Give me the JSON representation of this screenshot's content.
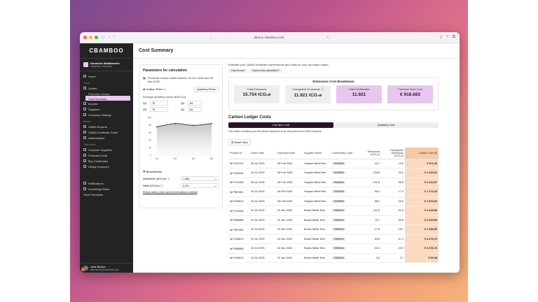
{
  "browser": {
    "url": "demo1.cbamboo.com"
  },
  "app": {
    "brand": "CBAMBOO",
    "org_name": "Deutsche Metallwerke",
    "org_location": "Hamburg, Germany",
    "page_title": "Cost Summary"
  },
  "sidebar": {
    "home": "Home",
    "section_track": "Track",
    "orders": "Orders",
    "purchase_orders": "Purchase Orders",
    "cost_summary": "Cost Summary",
    "imports": "Imports",
    "suppliers": "Suppliers",
    "company_settings": "Company Settings",
    "section_report": "Report",
    "cbam_reports": "CBAM Reports",
    "cbam_certificates_guide": "CBAM Certificate Guide",
    "authorisation": "Authorisation",
    "section_take_action": "Take Action",
    "compare_suppliers": "Compare Suppliers",
    "forecast_costs": "Forecast Costs",
    "buy_certificates": "Buy Certificates",
    "hedge_exposure": "Hedge Exposure",
    "notifications": "Notifications",
    "knowledge_base": "Knowledge Base",
    "send_feedback": "Send Feedback",
    "user_name": "Julia Becker",
    "user_email": "julia.becker@cbamboo.com"
  },
  "params": {
    "title": "Parameters for calculation",
    "note": "Purchase orders made between 30 Jun 2025 and 30 Nov 2025",
    "carbon_price_label": "Carbon Price",
    "carbon_price_mode": "Quarterly Prices",
    "avg_label": "Average quarterly prices (€/tCO₂e)",
    "q1_label": "Q1",
    "q1_value": "75",
    "q2_label": "Q2",
    "q2_value": "84",
    "q3_label": "Q3",
    "q3_value": "79",
    "q4_label": "Q4",
    "q4_value": "84",
    "benchmarks_label": "Benchmarks",
    "aluminium_label": "Aluminium (tCO₂e)",
    "aluminium_value": "1.464",
    "steel_label": "Steel (tCO₂e)",
    "steel_value": "0.2%",
    "reset_link": "Reset carbon price and benchmarks to default"
  },
  "chart_data": {
    "type": "area",
    "categories": [
      "Q1",
      "Q2",
      "Q3",
      "Q4"
    ],
    "values": [
      75,
      84,
      79,
      84
    ],
    "yticks": [
      "100",
      "80",
      "60",
      "40",
      "20",
      "0"
    ],
    "xticks": [
      "Q1",
      "Q2",
      "Q3",
      "Q4"
    ]
  },
  "summary": {
    "intro": "Estimate your CBAM certificate requirements and costs for your purchase orders.",
    "btn_how_to_use": "How to use",
    "btn_how_calculated": "How is this calculated?",
    "breakdown_title": "Emissions Cost Breakdown",
    "cards": [
      {
        "label": "Total Emissions",
        "value": "15.754 tCO₂e"
      },
      {
        "label": "Chargeable Emissions",
        "value": "11.921 tCO₂e"
      },
      {
        "label": "Total Certificates",
        "value": "11.921"
      },
      {
        "label": "Forecast Total Cost",
        "value": "€ 918.683"
      }
    ]
  },
  "ledger": {
    "title": "Carbon Ledger Costs",
    "tab_line": "Line Item Cost",
    "tab_quarterly": "Quarterly Cost",
    "note": "This table contains your line items expected to be imported from 2026 onwards.",
    "reset_view": "Reset View",
    "headers": [
      "Product ID",
      "Order Date",
      "Expected Date",
      "Supplier Name",
      "Commodity Code",
      "Emissions (tCO₂e)",
      "Chargeable Emissions (tCO₂e)",
      "CBAM Cost (€)"
    ],
    "rows": [
      [
        "P222222",
        "26 Jul 2025",
        "26 Feb 2026",
        "Huayan Metal Wor",
        "76169990",
        "44,7",
        "13,0",
        "€ 971,34"
      ],
      [
        "P444444",
        "26 Jul 2025",
        "26 Feb 2026",
        "Huayan Metal Wor",
        "76169990",
        "100,8",
        "29,3",
        "€ 2.182,62"
      ],
      [
        "P123456",
        "26 Jul 2025",
        "26 Feb 2026",
        "Huayan Metal Wor",
        "76169990",
        "191,6",
        "55,6",
        "€ 4.164,07"
      ],
      [
        "P987654",
        "26 Jul 2025",
        "26 Feb 2026",
        "Huayan Metal Wor",
        "76169990",
        "58,9",
        "17,0",
        "€ 1.274,15"
      ],
      [
        "P246813",
        "26 Jul 2025",
        "26 Feb 2026",
        "Huayan Metal Wor",
        "76169990",
        "88,0",
        "25,5",
        "€ 1.913,04"
      ],
      [
        "P123456",
        "24 Jul 2025",
        "24 Jan 2026",
        "Busan Metal Tech",
        "73269040",
        "111,5",
        "32,3",
        "€ 2.418,96"
      ],
      [
        "P888888",
        "24 Jul 2025",
        "24 Jan 2026",
        "Busan Metal Tech",
        "73269040",
        "79,7",
        "89,8",
        "€ 2.015,65"
      ],
      [
        "P987654",
        "24 Jul 2025",
        "24 Jan 2026",
        "Busan Metal Tech",
        "73269040",
        "17,8",
        "15,7",
        "€ 1.180,65"
      ],
      [
        "P246813",
        "24 Jul 2025",
        "24 Jan 2026",
        "Busan Metal Tech",
        "73269040",
        "84,6",
        "57,1",
        "€ 4.279,76"
      ],
      [
        "P888888",
        "24 Jul 2025",
        "24 Jan 2026",
        "Busan Metal Tech",
        "73269040",
        "59,2",
        "49,9",
        "€ 3.733,78"
      ],
      [
        "P246813",
        "24 Jul 2025",
        "24 Jan 2026",
        "Busan Metal Tech",
        "73269040",
        "0,8",
        "0,7",
        "€ 52,48"
      ]
    ]
  }
}
